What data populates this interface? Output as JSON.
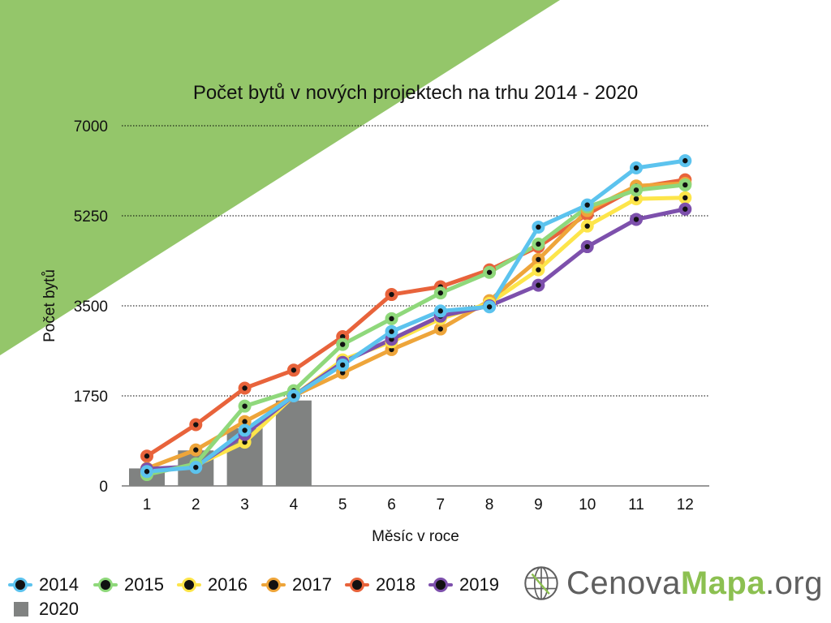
{
  "colors": {
    "accent_green": "#94c66a",
    "grid": "#000000",
    "bar": "#808281",
    "logo_gray": "#5f5f5f",
    "logo_green": "#8cc051"
  },
  "logo": {
    "icon": "globe-grid-icon",
    "part1": "Cenova",
    "part2": "Mapa",
    "part3": ".org"
  },
  "chart_data": {
    "type": "line",
    "title": "Počet bytů v nových projektech na trhu 2014 - 2020",
    "xlabel": "Měsíc v roce",
    "ylabel": "Počet bytů",
    "x": [
      1,
      2,
      3,
      4,
      5,
      6,
      7,
      8,
      9,
      10,
      11,
      12
    ],
    "x_ticks": [
      "1",
      "2",
      "3",
      "4",
      "5",
      "6",
      "7",
      "8",
      "9",
      "10",
      "11",
      "12"
    ],
    "ylim": [
      0,
      7000
    ],
    "y_ticks": [
      "0",
      "1750",
      "3500",
      "5250",
      "7000"
    ],
    "y_tick_values": [
      0,
      1750,
      3500,
      5250,
      7000
    ],
    "grid": true,
    "legend_position": "bottom",
    "series": [
      {
        "name": "2018",
        "type": "line",
        "color": "#e8633b",
        "values": [
          580,
          1190,
          1900,
          2250,
          2900,
          3720,
          3870,
          4200,
          4650,
          5280,
          5800,
          5950
        ]
      },
      {
        "name": "2017",
        "type": "line",
        "color": "#eea53a",
        "values": [
          340,
          700,
          1250,
          1750,
          2200,
          2650,
          3050,
          3600,
          4400,
          5350,
          5830,
          5880
        ]
      },
      {
        "name": "2016",
        "type": "line",
        "color": "#fde54a",
        "values": [
          250,
          400,
          850,
          1750,
          2450,
          2800,
          3250,
          3550,
          4200,
          5050,
          5580,
          5600
        ]
      },
      {
        "name": "2019",
        "type": "line",
        "color": "#7d50ac",
        "values": [
          330,
          380,
          1000,
          1750,
          2400,
          2850,
          3300,
          3500,
          3900,
          4650,
          5180,
          5380
        ]
      },
      {
        "name": "2015",
        "type": "line",
        "color": "#8fd87b",
        "values": [
          220,
          430,
          1550,
          1850,
          2750,
          3250,
          3750,
          4150,
          4700,
          5420,
          5750,
          5850
        ]
      },
      {
        "name": "2014",
        "type": "line",
        "color": "#5cc3ee",
        "values": [
          280,
          360,
          1080,
          1750,
          2350,
          3000,
          3400,
          3480,
          5030,
          5460,
          6180,
          6320
        ]
      },
      {
        "name": "2020",
        "type": "bar",
        "color": "#808281",
        "values": [
          340,
          690,
          1120,
          1660,
          null,
          null,
          null,
          null,
          null,
          null,
          null,
          null
        ]
      }
    ]
  },
  "legend": {
    "items": [
      {
        "name": "2014",
        "color": "#5cc3ee",
        "kind": "line"
      },
      {
        "name": "2015",
        "color": "#8fd87b",
        "kind": "line"
      },
      {
        "name": "2016",
        "color": "#fde54a",
        "kind": "line"
      },
      {
        "name": "2017",
        "color": "#eea53a",
        "kind": "line"
      },
      {
        "name": "2018",
        "color": "#e8633b",
        "kind": "line"
      },
      {
        "name": "2019",
        "color": "#7d50ac",
        "kind": "line"
      },
      {
        "name": "2020",
        "color": "#808281",
        "kind": "bar"
      }
    ]
  }
}
